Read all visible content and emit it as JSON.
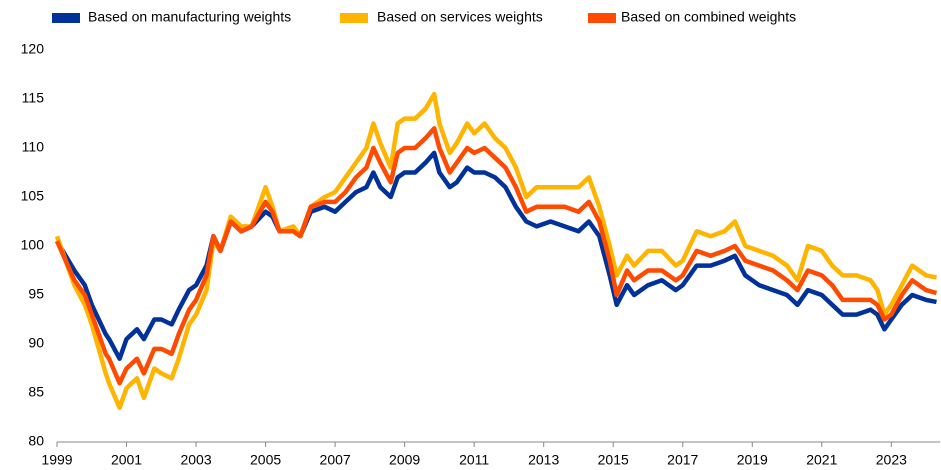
{
  "chart_data": {
    "type": "line",
    "x": [
      1999.0,
      1999.5,
      1999.8,
      2000.0,
      2000.4,
      2000.5,
      2000.8,
      2001.0,
      2001.3,
      2001.5,
      2001.8,
      2002.0,
      2002.3,
      2002.5,
      2002.8,
      2003.0,
      2003.3,
      2003.5,
      2003.7,
      2004.0,
      2004.3,
      2004.6,
      2005.0,
      2005.2,
      2005.4,
      2005.8,
      2006.0,
      2006.3,
      2006.7,
      2007.0,
      2007.3,
      2007.6,
      2007.9,
      2008.1,
      2008.3,
      2008.6,
      2008.8,
      2009.0,
      2009.3,
      2009.6,
      2009.85,
      2010.0,
      2010.3,
      2010.5,
      2010.8,
      2011.0,
      2011.3,
      2011.6,
      2011.9,
      2012.2,
      2012.5,
      2012.8,
      2013.2,
      2013.6,
      2014.0,
      2014.3,
      2014.6,
      2014.9,
      2015.1,
      2015.4,
      2015.6,
      2016.0,
      2016.4,
      2016.8,
      2017.0,
      2017.4,
      2017.8,
      2018.2,
      2018.5,
      2018.8,
      2019.2,
      2019.6,
      2020.0,
      2020.3,
      2020.6,
      2021.0,
      2021.3,
      2021.6,
      2022.0,
      2022.4,
      2022.6,
      2022.8,
      2023.0,
      2023.3,
      2023.6,
      2024.0,
      2024.3
    ],
    "series": [
      {
        "name": "Based on manufacturing weights",
        "color": "#003299",
        "values": [
          100.5,
          97.5,
          96,
          94,
          91,
          90.5,
          88.5,
          90.5,
          91.5,
          90.5,
          92.5,
          92.5,
          92,
          93.5,
          95.5,
          96,
          98,
          101,
          99.5,
          102.5,
          101.5,
          102,
          103.5,
          103,
          101.5,
          101.5,
          101,
          103.5,
          104,
          103.5,
          104.5,
          105.5,
          106,
          107.5,
          106,
          105,
          107,
          107.5,
          107.5,
          108.5,
          109.5,
          107.5,
          106,
          106.5,
          108,
          107.5,
          107.5,
          107,
          106,
          104,
          102.5,
          102,
          102.5,
          102,
          101.5,
          102.5,
          101,
          97,
          94,
          96,
          95,
          96,
          96.5,
          95.5,
          96,
          98,
          98,
          98.5,
          99,
          97,
          96,
          95.5,
          95,
          94,
          95.5,
          95,
          94,
          93,
          93,
          93.5,
          93,
          91.5,
          92.5,
          94,
          95,
          94.5,
          94.3
        ]
      },
      {
        "name": "Based on services weights",
        "color": "#ffb400",
        "values": [
          101,
          96,
          94,
          92,
          87,
          86,
          83.5,
          85.5,
          86.5,
          84.5,
          87.5,
          87,
          86.5,
          88.5,
          92,
          93,
          95.5,
          100.5,
          99.5,
          103,
          102,
          102,
          106,
          104,
          101.5,
          102,
          101,
          104,
          105,
          105.5,
          107,
          108.5,
          110,
          112.5,
          110.5,
          108,
          112.5,
          113,
          113,
          114,
          115.5,
          112.5,
          109.5,
          110.5,
          112.5,
          111.5,
          112.5,
          111,
          110,
          108,
          105,
          106,
          106,
          106,
          106,
          107,
          104,
          100,
          97,
          99,
          98,
          99.5,
          99.5,
          98,
          98.5,
          101.5,
          101,
          101.5,
          102.5,
          100,
          99.5,
          99,
          98,
          96.5,
          100,
          99.5,
          98,
          97,
          97,
          96.5,
          95.5,
          93,
          94,
          96,
          98,
          97,
          96.8
        ]
      },
      {
        "name": "Based on combined weights",
        "color": "#ff4b00",
        "values": [
          100.5,
          96.5,
          95,
          93,
          89,
          88.5,
          86,
          87.5,
          88.5,
          87,
          89.5,
          89.5,
          89,
          91,
          93.5,
          94.5,
          97,
          101,
          99.5,
          102.5,
          101.5,
          102,
          104.5,
          103.5,
          101.5,
          101.5,
          101,
          104,
          104.5,
          104.5,
          105.5,
          107,
          108,
          110,
          108.5,
          106.5,
          109.5,
          110,
          110,
          111,
          112,
          110,
          107.5,
          108.5,
          110,
          109.5,
          110,
          109,
          108,
          106,
          103.5,
          104,
          104,
          104,
          103.5,
          104.5,
          102.5,
          98.5,
          95,
          97.5,
          96.5,
          97.5,
          97.5,
          96.5,
          97,
          99.5,
          99,
          99.5,
          100,
          98.5,
          98,
          97.5,
          96.5,
          95.5,
          97.5,
          97,
          96,
          94.5,
          94.5,
          94.5,
          94,
          92.5,
          93,
          95,
          96.5,
          95.5,
          95.2
        ]
      }
    ],
    "xlim": [
      1999,
      2024.4
    ],
    "xticks": [
      1999,
      2001,
      2003,
      2005,
      2007,
      2009,
      2011,
      2013,
      2015,
      2017,
      2019,
      2021,
      2023
    ],
    "ylim": [
      80,
      120
    ],
    "yticks": [
      80,
      85,
      90,
      95,
      100,
      105,
      110,
      115,
      120
    ],
    "grid": false,
    "legend": "top"
  }
}
